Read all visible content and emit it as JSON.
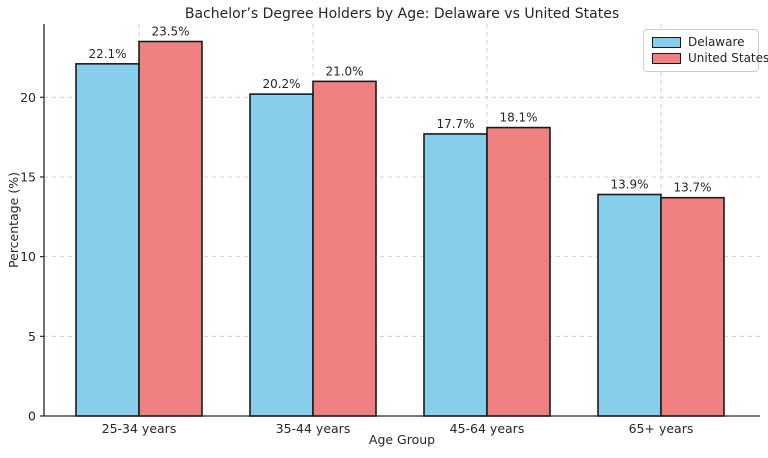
{
  "chart_data": {
    "type": "bar",
    "title": "Bachelor’s Degree Holders by Age: Delaware vs United States",
    "xlabel": "Age Group",
    "ylabel": "Percentage (%)",
    "categories": [
      "25-34 years",
      "35-44 years",
      "45-64 years",
      "65+ years"
    ],
    "series": [
      {
        "name": "Delaware",
        "color": "#87CEEB",
        "values": [
          22.1,
          20.2,
          17.7,
          13.9
        ],
        "labels": [
          "22.1%",
          "20.2%",
          "17.7%",
          "13.9%"
        ]
      },
      {
        "name": "United States",
        "color": "#F08080",
        "values": [
          23.5,
          21.0,
          18.1,
          13.7
        ],
        "labels": [
          "23.5%",
          "21.0%",
          "18.1%",
          "13.7%"
        ]
      }
    ],
    "ylim": [
      0,
      24.6
    ],
    "yticks": [
      0,
      5,
      10,
      15,
      20
    ],
    "grid": "dashed, both axes",
    "legend_position": "upper right",
    "colors": {
      "bar_edge": "#1a1a1a",
      "grid": "#cfcfcf",
      "axis": "#262626",
      "text": "#262626",
      "legend_border": "#cccccc"
    }
  }
}
